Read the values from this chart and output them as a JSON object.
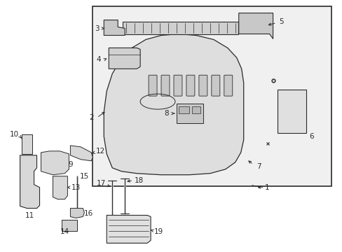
{
  "bg_color": "#ffffff",
  "line_color": "#2a2a2a",
  "box_bg": "#f0f0f0",
  "fig_width": 4.89,
  "fig_height": 3.6,
  "dpi": 100
}
